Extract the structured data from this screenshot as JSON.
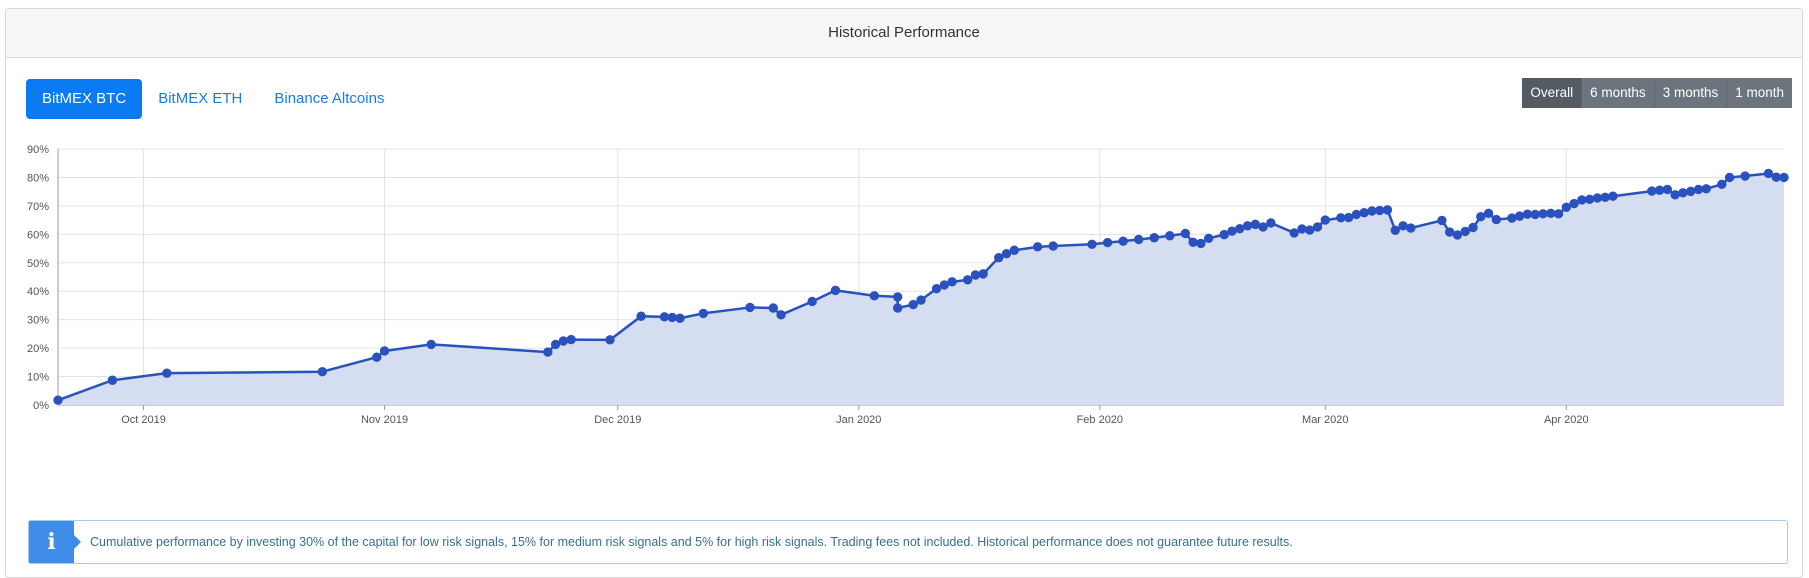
{
  "header": {
    "title": "Historical Performance"
  },
  "tabs": [
    {
      "label": "BitMEX BTC",
      "active": true
    },
    {
      "label": "BitMEX ETH",
      "active": false
    },
    {
      "label": "Binance Altcoins",
      "active": false
    }
  ],
  "ranges": [
    {
      "label": "Overall",
      "active": true
    },
    {
      "label": "6 months",
      "active": false
    },
    {
      "label": "3 months",
      "active": false
    },
    {
      "label": "1 month",
      "active": false
    }
  ],
  "alert": {
    "icon": "info-icon",
    "icon_glyph": "i",
    "text": "Cumulative performance by investing 30% of the capital for low risk signals, 15% for medium risk signals and 5% for high risk signals. Trading fees not included. Historical performance does not guarantee future results."
  },
  "colors": {
    "accent": "#0b7bf3",
    "line": "#2a52be",
    "area": "#d5ddf1",
    "info": "#3f8de8"
  },
  "chart_data": {
    "type": "area",
    "xlabel": "",
    "ylabel": "",
    "grid": true,
    "xlim": [
      "2019-09-20",
      "2020-04-29"
    ],
    "ylim": [
      0,
      90
    ],
    "yticks": [
      0,
      10,
      20,
      30,
      40,
      50,
      60,
      70,
      80,
      90
    ],
    "ytick_labels": [
      "0%",
      "10%",
      "20%",
      "30%",
      "40%",
      "50%",
      "60%",
      "70%",
      "80%",
      "90%"
    ],
    "xticks": [
      "2019-10-01",
      "2019-11-01",
      "2019-12-01",
      "2020-01-01",
      "2020-02-01",
      "2020-03-01",
      "2020-04-01"
    ],
    "xtick_labels": [
      "Oct 2019",
      "Nov 2019",
      "Dec 2019",
      "Jan 2020",
      "Feb 2020",
      "Mar 2020",
      "Apr 2020"
    ],
    "series": [
      {
        "name": "",
        "points": [
          [
            "2019-09-20",
            1.7
          ],
          [
            "2019-09-27",
            8.7
          ],
          [
            "2019-10-04",
            11.2
          ],
          [
            "2019-10-24",
            11.7
          ],
          [
            "2019-10-31",
            16.8
          ],
          [
            "2019-11-01",
            19.0
          ],
          [
            "2019-11-07",
            21.3
          ],
          [
            "2019-11-22",
            18.6
          ],
          [
            "2019-11-23",
            21.3
          ],
          [
            "2019-11-24",
            22.5
          ],
          [
            "2019-11-25",
            23.0
          ],
          [
            "2019-11-30",
            22.9
          ],
          [
            "2019-12-04",
            31.2
          ],
          [
            "2019-12-07",
            31.0
          ],
          [
            "2019-12-08",
            30.8
          ],
          [
            "2019-12-09",
            30.5
          ],
          [
            "2019-12-12",
            32.2
          ],
          [
            "2019-12-18",
            34.3
          ],
          [
            "2019-12-21",
            34.1
          ],
          [
            "2019-12-22",
            31.7
          ],
          [
            "2019-12-26",
            36.4
          ],
          [
            "2019-12-29",
            40.3
          ],
          [
            "2020-01-03",
            38.4
          ],
          [
            "2020-01-06",
            38.0
          ],
          [
            "2020-01-06",
            34.1
          ],
          [
            "2020-01-08",
            35.3
          ],
          [
            "2020-01-09",
            36.9
          ],
          [
            "2020-01-11",
            40.9
          ],
          [
            "2020-01-12",
            42.2
          ],
          [
            "2020-01-13",
            43.3
          ],
          [
            "2020-01-15",
            44.0
          ],
          [
            "2020-01-16",
            45.7
          ],
          [
            "2020-01-17",
            46.1
          ],
          [
            "2020-01-19",
            51.8
          ],
          [
            "2020-01-20",
            53.2
          ],
          [
            "2020-01-21",
            54.4
          ],
          [
            "2020-01-24",
            55.6
          ],
          [
            "2020-01-26",
            55.9
          ],
          [
            "2020-01-31",
            56.5
          ],
          [
            "2020-02-02",
            57.1
          ],
          [
            "2020-02-04",
            57.6
          ],
          [
            "2020-02-06",
            58.2
          ],
          [
            "2020-02-08",
            58.8
          ],
          [
            "2020-02-10",
            59.5
          ],
          [
            "2020-02-12",
            60.3
          ],
          [
            "2020-02-13",
            57.2
          ],
          [
            "2020-02-14",
            56.8
          ],
          [
            "2020-02-15",
            58.6
          ],
          [
            "2020-02-17",
            59.9
          ],
          [
            "2020-02-18",
            61.1
          ],
          [
            "2020-02-19",
            62.0
          ],
          [
            "2020-02-20",
            63.0
          ],
          [
            "2020-02-21",
            63.5
          ],
          [
            "2020-02-22",
            62.6
          ],
          [
            "2020-02-23",
            64.0
          ],
          [
            "2020-02-26",
            60.5
          ],
          [
            "2020-02-27",
            61.9
          ],
          [
            "2020-02-28",
            61.5
          ],
          [
            "2020-02-29",
            62.6
          ],
          [
            "2020-03-01",
            65.0
          ],
          [
            "2020-03-03",
            65.8
          ],
          [
            "2020-03-04",
            65.9
          ],
          [
            "2020-03-05",
            67.0
          ],
          [
            "2020-03-06",
            67.6
          ],
          [
            "2020-03-07",
            68.2
          ],
          [
            "2020-03-08",
            68.4
          ],
          [
            "2020-03-09",
            68.6
          ],
          [
            "2020-03-10",
            61.4
          ],
          [
            "2020-03-11",
            63.0
          ],
          [
            "2020-03-12",
            62.2
          ],
          [
            "2020-03-16",
            64.9
          ],
          [
            "2020-03-17",
            60.8
          ],
          [
            "2020-03-18",
            59.8
          ],
          [
            "2020-03-19",
            61.0
          ],
          [
            "2020-03-20",
            62.4
          ],
          [
            "2020-03-21",
            66.2
          ],
          [
            "2020-03-22",
            67.4
          ],
          [
            "2020-03-23",
            65.2
          ],
          [
            "2020-03-25",
            65.7
          ],
          [
            "2020-03-26",
            66.4
          ],
          [
            "2020-03-27",
            67.1
          ],
          [
            "2020-03-28",
            67.0
          ],
          [
            "2020-03-29",
            67.2
          ],
          [
            "2020-03-30",
            67.4
          ],
          [
            "2020-03-31",
            67.2
          ],
          [
            "2020-04-01",
            69.5
          ],
          [
            "2020-04-02",
            70.8
          ],
          [
            "2020-04-03",
            72.1
          ],
          [
            "2020-04-04",
            72.3
          ],
          [
            "2020-04-05",
            72.8
          ],
          [
            "2020-04-06",
            73.0
          ],
          [
            "2020-04-07",
            73.4
          ],
          [
            "2020-04-12",
            75.2
          ],
          [
            "2020-04-13",
            75.5
          ],
          [
            "2020-04-14",
            75.8
          ],
          [
            "2020-04-15",
            73.9
          ],
          [
            "2020-04-16",
            74.6
          ],
          [
            "2020-04-17",
            75.1
          ],
          [
            "2020-04-18",
            75.8
          ],
          [
            "2020-04-19",
            76.0
          ],
          [
            "2020-04-21",
            77.6
          ],
          [
            "2020-04-22",
            80.0
          ],
          [
            "2020-04-24",
            80.5
          ],
          [
            "2020-04-27",
            81.4
          ],
          [
            "2020-04-28",
            80.1
          ],
          [
            "2020-04-29",
            80.0
          ]
        ]
      }
    ]
  }
}
